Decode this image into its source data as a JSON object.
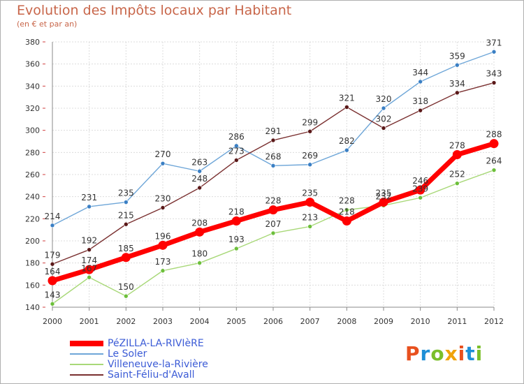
{
  "header": {
    "title": "Evolution des Impôts locaux par Habitant",
    "subtitle": "(en € et par an)"
  },
  "logo": {
    "text": "Proxiti",
    "colors": [
      "#e8501e",
      "#1e8fd6",
      "#7bbf2a",
      "#f0a30a",
      "#e8501e",
      "#1e8fd6",
      "#7bbf2a"
    ]
  },
  "chart_data": {
    "type": "line",
    "title": "Evolution des Impôts locaux par Habitant",
    "ylabel": "(en € et par an)",
    "xlabel": "",
    "ylim": [
      140,
      380
    ],
    "yticks": [
      "140",
      "160",
      "180",
      "200",
      "220",
      "240",
      "260",
      "280",
      "300",
      "320",
      "340",
      "360",
      "380"
    ],
    "x": [
      "2000",
      "2001",
      "2002",
      "2003",
      "2004",
      "2005",
      "2006",
      "2007",
      "2008",
      "2009",
      "2010",
      "2011",
      "2012"
    ],
    "grid": true,
    "legend_position": "bottom-left",
    "series": [
      {
        "name": "Le Soler",
        "color": "#6ea6d8",
        "marker": "#3a7fc4",
        "thick": false,
        "values": [
          214,
          231,
          235,
          270,
          263,
          286,
          268,
          269,
          282,
          320,
          344,
          359,
          371
        ],
        "labels": [
          "214",
          "231",
          "235",
          "270",
          "263",
          "286",
          "268",
          "269",
          "282",
          "320",
          "344",
          "359",
          "371"
        ]
      },
      {
        "name": "Saint-Féliu-d'Avall",
        "color": "#7a3030",
        "marker": "#5a1818",
        "thick": false,
        "values": [
          179,
          192,
          215,
          230,
          248,
          273,
          291,
          299,
          321,
          302,
          318,
          334,
          343
        ],
        "labels": [
          "179",
          "192",
          "215",
          "230",
          "248",
          "273",
          "291",
          "299",
          "321",
          "302",
          "318",
          "334",
          "343"
        ]
      },
      {
        "name": "Villeneuve-la-Rivière",
        "color": "#a8d878",
        "marker": "#6cbf3a",
        "thick": false,
        "values": [
          143,
          167,
          150,
          173,
          180,
          193,
          207,
          213,
          228,
          232,
          239,
          252,
          264
        ],
        "labels": [
          "143",
          "167",
          "150",
          "173",
          "180",
          "193",
          "207",
          "213",
          "228",
          "232",
          "239",
          "252",
          "264"
        ]
      },
      {
        "name": "PéZILLA-LA-RIVIèRE",
        "color": "#ff0000",
        "marker": "#ff0000",
        "thick": true,
        "values": [
          164,
          174,
          185,
          196,
          208,
          218,
          228,
          235,
          218,
          235,
          246,
          278,
          288
        ],
        "labels": [
          "164",
          "174",
          "185",
          "196",
          "208",
          "218",
          "228",
          "235",
          "218",
          "235",
          "246",
          "278",
          "288"
        ]
      }
    ],
    "legend": [
      "PéZILLA-LA-RIVIèRE",
      "Le Soler",
      "Villeneuve-la-Rivière",
      "Saint-Féliu-d'Avall"
    ]
  }
}
